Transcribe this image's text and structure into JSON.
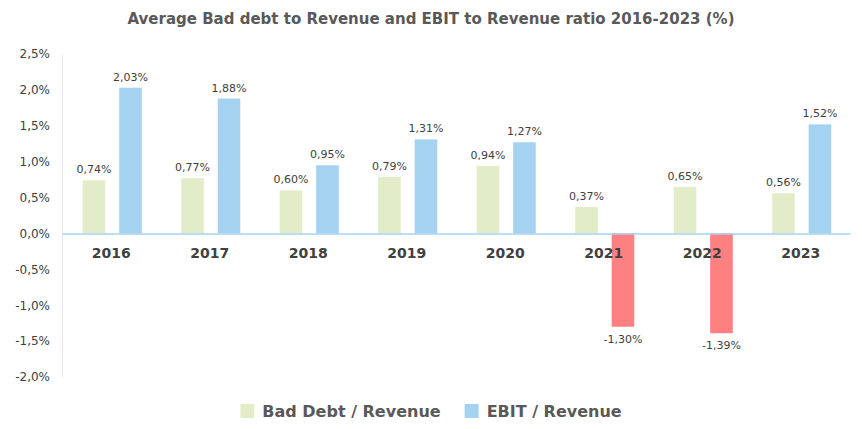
{
  "chart_data": {
    "type": "bar",
    "title": "Average Bad debt to Revenue and EBIT to Revenue ratio 2016-2023 (%)",
    "categories": [
      "2016",
      "2017",
      "2018",
      "2019",
      "2020",
      "2021",
      "2022",
      "2023"
    ],
    "series": [
      {
        "name": "Bad Debt / Revenue",
        "color": "#e3ecc8",
        "values": [
          0.74,
          0.77,
          0.6,
          0.79,
          0.94,
          0.37,
          0.65,
          0.56
        ],
        "value_labels": [
          "0,74%",
          "0,77%",
          "0,60%",
          "0,79%",
          "0,94%",
          "0,37%",
          "0,65%",
          "0,56%"
        ]
      },
      {
        "name": "EBIT / Revenue",
        "color": "#a6d2f1",
        "colors": [
          "#a6d2f1",
          "#a6d2f1",
          "#a6d2f1",
          "#a6d2f1",
          "#a6d2f1",
          "#ff8080",
          "#ff8080",
          "#a6d2f1"
        ],
        "values": [
          2.03,
          1.88,
          0.95,
          1.31,
          1.27,
          -1.3,
          -1.39,
          1.52
        ],
        "value_labels": [
          "2,03%",
          "1,88%",
          "0,95%",
          "1,31%",
          "1,27%",
          "-1,30%",
          "-1,39%",
          "1,52%"
        ]
      }
    ],
    "ylim": [
      -2.0,
      2.5
    ],
    "yticks": [
      {
        "value": -2.0,
        "label": "-2,0%"
      },
      {
        "value": -1.5,
        "label": "-1,5%"
      },
      {
        "value": -1.0,
        "label": "-1,0%"
      },
      {
        "value": -0.5,
        "label": "-0,5%"
      },
      {
        "value": 0.0,
        "label": "0,0%"
      },
      {
        "value": 0.5,
        "label": "0,5%"
      },
      {
        "value": 1.0,
        "label": "1,0%"
      },
      {
        "value": 1.5,
        "label": "1,5%"
      },
      {
        "value": 2.0,
        "label": "2,0%"
      },
      {
        "value": 2.5,
        "label": "2,5%"
      }
    ],
    "grid": false,
    "data_labels": true,
    "legend": "bottom"
  }
}
